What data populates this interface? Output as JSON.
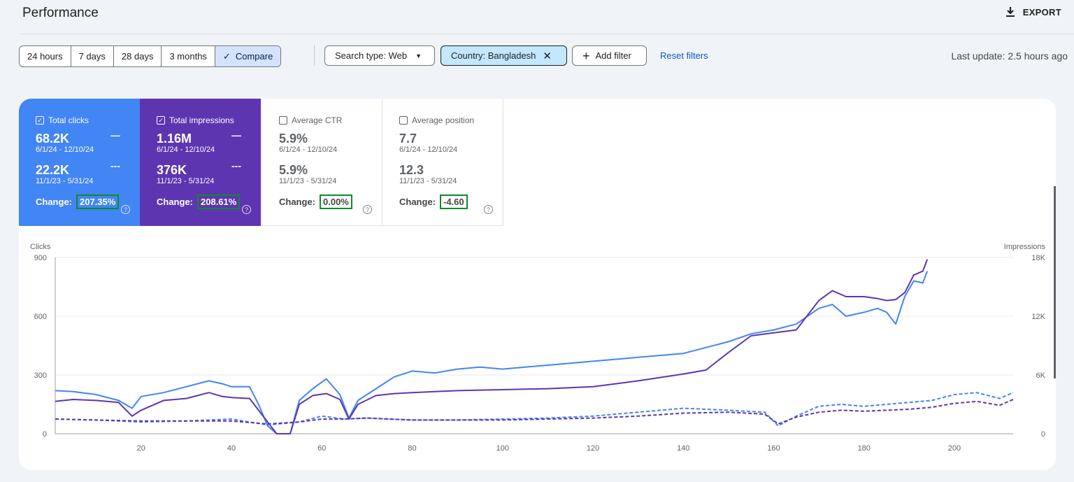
{
  "header": {
    "title": "Performance",
    "export_label": "EXPORT"
  },
  "toolbar": {
    "ranges": [
      {
        "label": "24 hours",
        "active": false
      },
      {
        "label": "7 days",
        "active": false
      },
      {
        "label": "28 days",
        "active": false
      },
      {
        "label": "3 months",
        "active": false
      },
      {
        "label": "Compare",
        "active": true
      }
    ],
    "search_type": "Search type: Web",
    "country_filter": "Country: Bangladesh",
    "add_filter": "Add filter",
    "reset": "Reset filters",
    "last_update": "Last update: 2.5 hours ago"
  },
  "metrics": [
    {
      "label": "Total clicks",
      "checked": true,
      "value1": "68.2K",
      "date1": "6/1/24 - 12/10/24",
      "value2": "22.2K",
      "date2": "11/1/23 - 5/31/24",
      "change_label": "Change:",
      "change": "207.35%"
    },
    {
      "label": "Total impressions",
      "checked": true,
      "value1": "1.16M",
      "date1": "6/1/24 - 12/10/24",
      "value2": "376K",
      "date2": "11/1/23 - 5/31/24",
      "change_label": "Change:",
      "change": "208.61%"
    },
    {
      "label": "Average CTR",
      "checked": false,
      "value1": "5.9%",
      "date1": "6/1/24 - 12/10/24",
      "value2": "5.9%",
      "date2": "11/1/23 - 5/31/24",
      "change_label": "Change:",
      "change": "0.00%"
    },
    {
      "label": "Average position",
      "checked": false,
      "value1": "7.7",
      "date1": "6/1/24 - 12/10/24",
      "value2": "12.3",
      "date2": "11/1/23 - 5/31/24",
      "change_label": "Change:",
      "change": "-4.60"
    }
  ],
  "chart_data": {
    "type": "line",
    "ylabel_left": "Clicks",
    "ylabel_right": "Impressions",
    "ylim_left": [
      0,
      900
    ],
    "ylim_right": [
      0,
      18000
    ],
    "yticks_left": [
      "0",
      "300",
      "600",
      "900"
    ],
    "yticks_right": [
      "0",
      "6K",
      "12K",
      "18K"
    ],
    "xlim": [
      1,
      213
    ],
    "xticks": [
      20,
      40,
      60,
      80,
      100,
      120,
      140,
      160,
      180,
      200
    ],
    "grid": true,
    "colors": {
      "clicks": "#4285f4",
      "impressions": "#5e35b1"
    },
    "series": [
      {
        "key": "clicks_current",
        "axis": "left",
        "dashed": false,
        "points": [
          [
            1,
            220
          ],
          [
            5,
            215
          ],
          [
            10,
            200
          ],
          [
            15,
            170
          ],
          [
            18,
            130
          ],
          [
            20,
            190
          ],
          [
            25,
            210
          ],
          [
            30,
            240
          ],
          [
            35,
            270
          ],
          [
            38,
            255
          ],
          [
            40,
            240
          ],
          [
            44,
            240
          ],
          [
            46,
            150
          ],
          [
            48,
            40
          ],
          [
            50,
            0
          ],
          [
            53,
            0
          ],
          [
            55,
            170
          ],
          [
            58,
            230
          ],
          [
            61,
            280
          ],
          [
            64,
            200
          ],
          [
            66,
            80
          ],
          [
            68,
            170
          ],
          [
            72,
            230
          ],
          [
            76,
            290
          ],
          [
            80,
            320
          ],
          [
            85,
            310
          ],
          [
            90,
            330
          ],
          [
            95,
            340
          ],
          [
            100,
            330
          ],
          [
            105,
            340
          ],
          [
            110,
            350
          ],
          [
            115,
            360
          ],
          [
            120,
            370
          ],
          [
            125,
            380
          ],
          [
            130,
            390
          ],
          [
            135,
            400
          ],
          [
            140,
            410
          ],
          [
            145,
            440
          ],
          [
            150,
            470
          ],
          [
            155,
            510
          ],
          [
            160,
            530
          ],
          [
            165,
            560
          ],
          [
            170,
            640
          ],
          [
            173,
            660
          ],
          [
            176,
            600
          ],
          [
            180,
            620
          ],
          [
            183,
            640
          ],
          [
            185,
            620
          ],
          [
            187,
            560
          ],
          [
            189,
            700
          ],
          [
            191,
            780
          ],
          [
            193,
            770
          ],
          [
            194,
            830
          ]
        ]
      },
      {
        "key": "impressions_current",
        "axis": "right",
        "dashed": false,
        "points": [
          [
            1,
            3300
          ],
          [
            5,
            3500
          ],
          [
            10,
            3400
          ],
          [
            15,
            3200
          ],
          [
            18,
            1800
          ],
          [
            20,
            2400
          ],
          [
            25,
            3400
          ],
          [
            30,
            3600
          ],
          [
            35,
            4200
          ],
          [
            38,
            3800
          ],
          [
            40,
            3700
          ],
          [
            44,
            3600
          ],
          [
            46,
            2400
          ],
          [
            48,
            1200
          ],
          [
            50,
            0
          ],
          [
            53,
            0
          ],
          [
            55,
            3000
          ],
          [
            58,
            3900
          ],
          [
            61,
            4100
          ],
          [
            64,
            3500
          ],
          [
            66,
            1500
          ],
          [
            68,
            3000
          ],
          [
            72,
            3900
          ],
          [
            76,
            4100
          ],
          [
            80,
            4200
          ],
          [
            90,
            4400
          ],
          [
            100,
            4500
          ],
          [
            110,
            4600
          ],
          [
            120,
            4800
          ],
          [
            130,
            5400
          ],
          [
            140,
            6100
          ],
          [
            145,
            6500
          ],
          [
            150,
            8300
          ],
          [
            155,
            10000
          ],
          [
            160,
            10300
          ],
          [
            165,
            10600
          ],
          [
            170,
            13600
          ],
          [
            173,
            14600
          ],
          [
            176,
            14000
          ],
          [
            180,
            14000
          ],
          [
            183,
            13800
          ],
          [
            185,
            13600
          ],
          [
            187,
            13700
          ],
          [
            189,
            14400
          ],
          [
            191,
            16200
          ],
          [
            193,
            16600
          ],
          [
            194,
            17800
          ]
        ]
      },
      {
        "key": "clicks_previous",
        "axis": "left",
        "dashed": true,
        "points": [
          [
            1,
            75
          ],
          [
            10,
            70
          ],
          [
            20,
            60
          ],
          [
            30,
            65
          ],
          [
            40,
            75
          ],
          [
            48,
            45
          ],
          [
            55,
            60
          ],
          [
            60,
            90
          ],
          [
            65,
            75
          ],
          [
            70,
            80
          ],
          [
            80,
            70
          ],
          [
            90,
            70
          ],
          [
            100,
            75
          ],
          [
            110,
            80
          ],
          [
            120,
            90
          ],
          [
            130,
            110
          ],
          [
            140,
            130
          ],
          [
            150,
            120
          ],
          [
            158,
            110
          ],
          [
            161,
            40
          ],
          [
            165,
            90
          ],
          [
            170,
            140
          ],
          [
            175,
            150
          ],
          [
            180,
            140
          ],
          [
            185,
            150
          ],
          [
            190,
            160
          ],
          [
            195,
            170
          ],
          [
            200,
            200
          ],
          [
            205,
            210
          ],
          [
            210,
            180
          ],
          [
            213,
            210
          ]
        ]
      },
      {
        "key": "impressions_previous",
        "axis": "right",
        "dashed": true,
        "points": [
          [
            1,
            1500
          ],
          [
            10,
            1400
          ],
          [
            20,
            1300
          ],
          [
            30,
            1300
          ],
          [
            40,
            1300
          ],
          [
            48,
            1000
          ],
          [
            55,
            1200
          ],
          [
            60,
            1500
          ],
          [
            65,
            1500
          ],
          [
            70,
            1600
          ],
          [
            80,
            1400
          ],
          [
            90,
            1400
          ],
          [
            100,
            1400
          ],
          [
            110,
            1500
          ],
          [
            120,
            1600
          ],
          [
            130,
            1800
          ],
          [
            140,
            2100
          ],
          [
            150,
            2200
          ],
          [
            158,
            2000
          ],
          [
            161,
            1000
          ],
          [
            165,
            1700
          ],
          [
            170,
            2200
          ],
          [
            175,
            2400
          ],
          [
            180,
            2300
          ],
          [
            185,
            2400
          ],
          [
            190,
            2500
          ],
          [
            195,
            2700
          ],
          [
            200,
            3100
          ],
          [
            205,
            3300
          ],
          [
            210,
            2900
          ],
          [
            213,
            3500
          ]
        ]
      }
    ]
  }
}
